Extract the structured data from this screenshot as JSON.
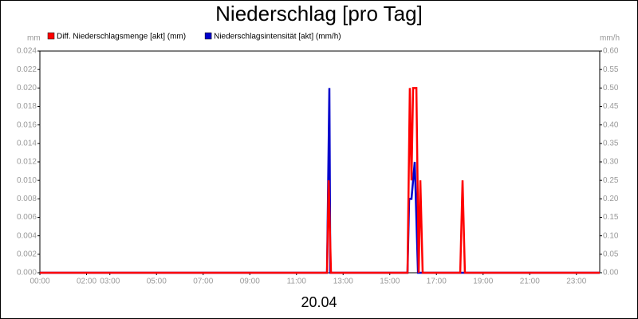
{
  "chart_data": {
    "type": "line",
    "title": "Niederschlag [pro Tag]",
    "y_label": "mm",
    "y2_label": "mm/h",
    "x_label": "20.04",
    "xlim": [
      0,
      24
    ],
    "xticks": [
      {
        "value": 0,
        "label": "00:00"
      },
      {
        "value": 2,
        "label": "02:00"
      },
      {
        "value": 3,
        "label": "03:00"
      },
      {
        "value": 5,
        "label": "05:00"
      },
      {
        "value": 7,
        "label": "07:00"
      },
      {
        "value": 9,
        "label": "09:00"
      },
      {
        "value": 11,
        "label": "11:00"
      },
      {
        "value": 13,
        "label": "13:00"
      },
      {
        "value": 15,
        "label": "15:00"
      },
      {
        "value": 17,
        "label": "17:00"
      },
      {
        "value": 19,
        "label": "19:00"
      },
      {
        "value": 21,
        "label": "21:00"
      },
      {
        "value": 23,
        "label": "23:00"
      }
    ],
    "ylim": [
      0,
      0.024
    ],
    "yticks": [
      {
        "value": 0,
        "label": "0.000"
      },
      {
        "value": 0.002,
        "label": "0.002"
      },
      {
        "value": 0.004,
        "label": "0.004"
      },
      {
        "value": 0.006,
        "label": "0.006"
      },
      {
        "value": 0.008,
        "label": "0.008"
      },
      {
        "value": 0.01,
        "label": "0.010"
      },
      {
        "value": 0.012,
        "label": "0.012"
      },
      {
        "value": 0.014,
        "label": "0.014"
      },
      {
        "value": 0.016,
        "label": "0.016"
      },
      {
        "value": 0.018,
        "label": "0.018"
      },
      {
        "value": 0.02,
        "label": "0.020"
      },
      {
        "value": 0.022,
        "label": "0.022"
      },
      {
        "value": 0.024,
        "label": "0.024"
      }
    ],
    "y2lim": [
      0,
      0.6
    ],
    "y2ticks": [
      {
        "value": 0,
        "label": "0.00"
      },
      {
        "value": 0.05,
        "label": "0.05"
      },
      {
        "value": 0.1,
        "label": "0.10"
      },
      {
        "value": 0.15,
        "label": "0.15"
      },
      {
        "value": 0.2,
        "label": "0.20"
      },
      {
        "value": 0.25,
        "label": "0.25"
      },
      {
        "value": 0.3,
        "label": "0.30"
      },
      {
        "value": 0.35,
        "label": "0.35"
      },
      {
        "value": 0.4,
        "label": "0.40"
      },
      {
        "value": 0.45,
        "label": "0.45"
      },
      {
        "value": 0.5,
        "label": "0.50"
      },
      {
        "value": 0.55,
        "label": "0.55"
      },
      {
        "value": 0.6,
        "label": "0.60"
      }
    ],
    "grid": false,
    "series": [
      {
        "name": "Diff. Niederschlagsmenge [akt] (mm)",
        "color": "#ff0000",
        "axis": "y",
        "x": [
          0,
          12.31,
          12.38,
          12.48,
          15.76,
          15.86,
          15.93,
          16.0,
          16.14,
          16.24,
          16.31,
          16.41,
          18.02,
          18.12,
          18.22,
          24
        ],
        "values": [
          0,
          0,
          0.01,
          0,
          0,
          0.02,
          0.01,
          0.02,
          0.02,
          0,
          0.01,
          0,
          0,
          0.01,
          0,
          0
        ]
      },
      {
        "name": "Niederschlagsintensität [akt] (mm/h)",
        "color": "#0000cc",
        "axis": "y2",
        "x": [
          0,
          12.31,
          12.41,
          12.45,
          15.76,
          15.83,
          15.93,
          16.07,
          16.21,
          24
        ],
        "values": [
          0,
          0,
          0.5,
          0,
          0,
          0.2,
          0.2,
          0.3,
          0,
          0
        ]
      }
    ]
  }
}
